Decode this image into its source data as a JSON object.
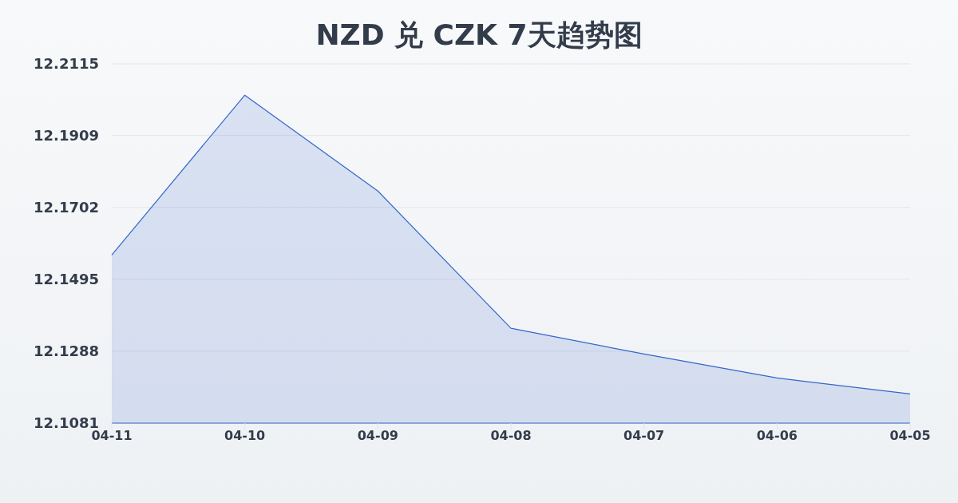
{
  "chart_data": {
    "type": "area",
    "title": "NZD 兑 CZK 7天趋势图",
    "categories": [
      "04-11",
      "04-10",
      "04-09",
      "04-08",
      "04-07",
      "04-06",
      "04-05"
    ],
    "values": [
      12.1565,
      12.2025,
      12.1749,
      12.1354,
      12.128,
      12.1211,
      12.1165
    ],
    "color": "#3366cc",
    "ylim": [
      12.1081,
      12.2115
    ],
    "yticks": [
      12.1081,
      12.1288,
      12.1495,
      12.1702,
      12.1909,
      12.2115
    ],
    "grid": "y"
  }
}
